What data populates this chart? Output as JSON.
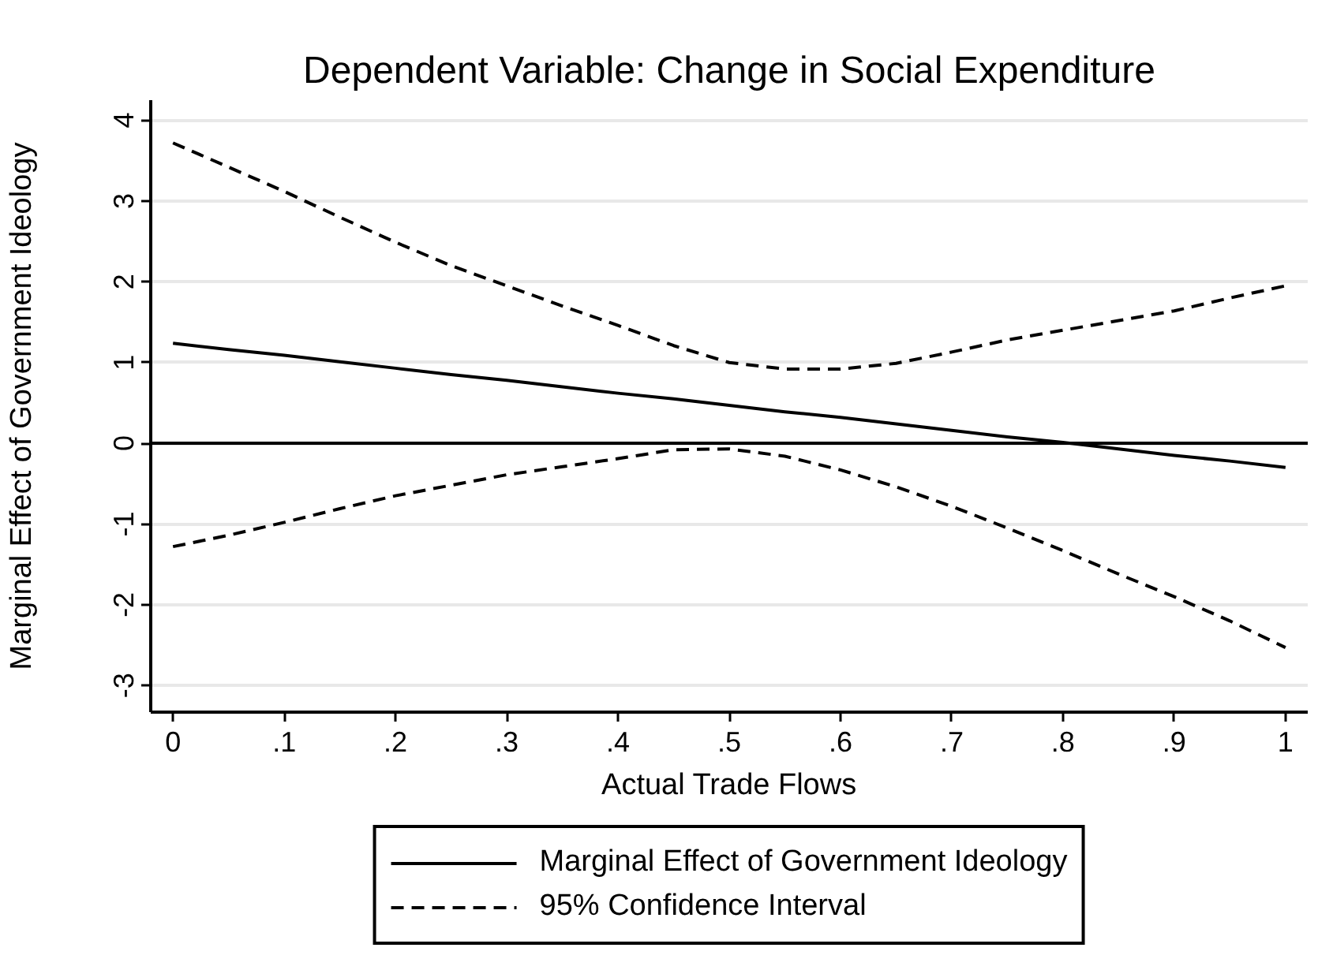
{
  "chart_data": {
    "type": "line",
    "title": "Dependent Variable: Change in Social Expenditure",
    "xlabel": "Actual Trade Flows",
    "ylabel": "Marginal Effect of Government Ideology",
    "x": [
      0,
      0.05,
      0.1,
      0.15,
      0.2,
      0.25,
      0.3,
      0.35,
      0.4,
      0.45,
      0.5,
      0.55,
      0.6,
      0.65,
      0.7,
      0.75,
      0.8,
      0.85,
      0.9,
      0.95,
      1
    ],
    "series": [
      {
        "name": "Marginal Effect of Government Ideology",
        "color": "#000000",
        "line_style": "solid",
        "values": [
          1.24,
          1.16,
          1.09,
          1.01,
          0.93,
          0.85,
          0.78,
          0.7,
          0.62,
          0.55,
          0.47,
          0.39,
          0.32,
          0.24,
          0.16,
          0.08,
          0.01,
          -0.07,
          -0.15,
          -0.22,
          -0.3
        ]
      },
      {
        "name": "95% Confidence Interval",
        "color": "#000000",
        "line_style": "dashed",
        "values": [
          3.72,
          3.42,
          3.12,
          2.8,
          2.49,
          2.2,
          1.95,
          1.7,
          1.46,
          1.21,
          1.0,
          0.92,
          0.92,
          0.99,
          1.13,
          1.28,
          1.4,
          1.52,
          1.64,
          1.8,
          1.95
        ]
      },
      {
        "color": "#000000",
        "line_style": "dashed",
        "values": [
          -1.28,
          -1.14,
          -0.98,
          -0.81,
          -0.65,
          -0.52,
          -0.39,
          -0.29,
          -0.19,
          -0.08,
          -0.07,
          -0.16,
          -0.33,
          -0.54,
          -0.78,
          -1.05,
          -1.33,
          -1.62,
          -1.9,
          -2.2,
          -2.53
        ]
      }
    ],
    "xlim": [
      -0.02,
      1.02
    ],
    "ylim": [
      -3.33,
      4.25
    ],
    "xticks": [
      0,
      {
        "value": 0.1,
        "label": ".1"
      },
      {
        "value": 0.2,
        "label": ".2"
      },
      {
        "value": 0.3,
        "label": ".3"
      },
      {
        "value": 0.4,
        "label": ".4"
      },
      {
        "value": 0.5,
        "label": ".5"
      },
      {
        "value": 0.6,
        "label": ".6"
      },
      {
        "value": 0.7,
        "label": ".7"
      },
      {
        "value": 0.8,
        "label": ".8"
      },
      {
        "value": 0.9,
        "label": ".9"
      },
      1
    ],
    "yticks": [
      -3,
      -2,
      -1,
      0,
      1,
      2,
      3,
      4
    ],
    "ref_lines": [
      {
        "axis": "y",
        "value": 0,
        "color": "#000000",
        "line_style": "solid"
      }
    ],
    "grid": "y",
    "legend": "bottom"
  }
}
